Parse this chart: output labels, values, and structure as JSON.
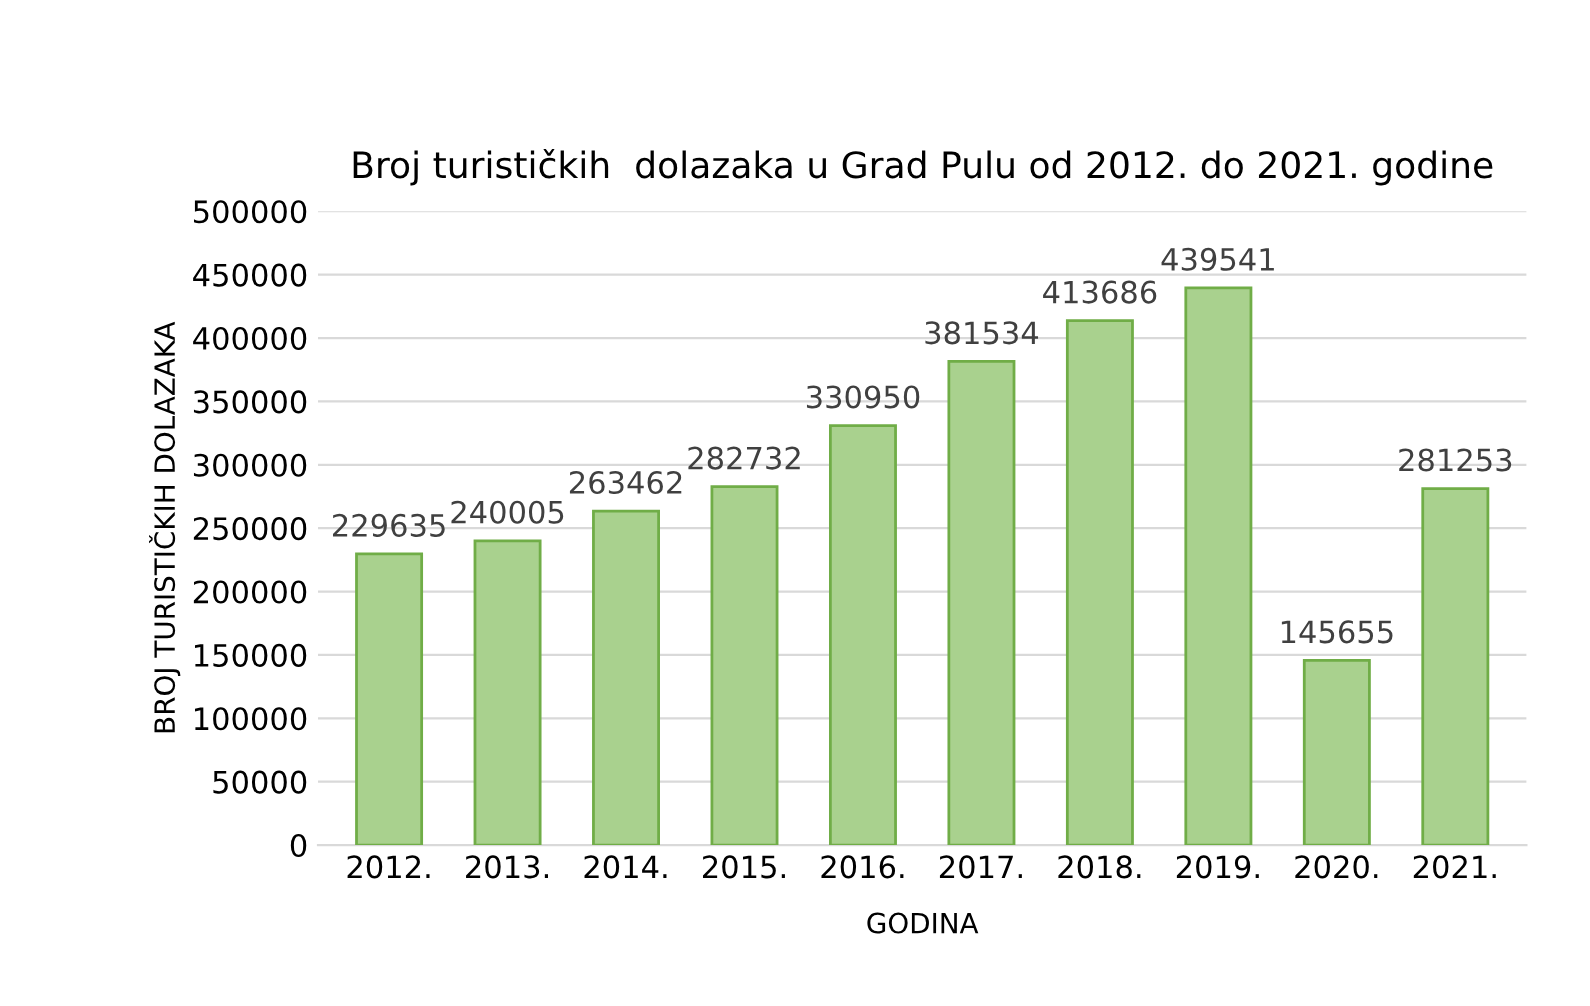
{
  "chart_data": {
    "type": "bar",
    "title": "Broj turističkih  dolazaka u Grad Pulu od 2012. do 2021. godine",
    "xlabel": "GODINA",
    "ylabel": "BROJ TURISTIČKIH DOLAZAKA",
    "categories": [
      "2012.",
      "2013.",
      "2014.",
      "2015.",
      "2016.",
      "2017.",
      "2018.",
      "2019.",
      "2020.",
      "2021."
    ],
    "values": [
      229635,
      240005,
      263462,
      282732,
      330950,
      381534,
      413686,
      439541,
      145655,
      281253
    ],
    "color": "#a9d18e",
    "ylim": [
      0,
      500000
    ],
    "yticks": [
      0,
      50000,
      100000,
      150000,
      200000,
      250000,
      300000,
      350000,
      400000,
      450000,
      500000
    ],
    "grid": "y",
    "data_labels": true
  }
}
